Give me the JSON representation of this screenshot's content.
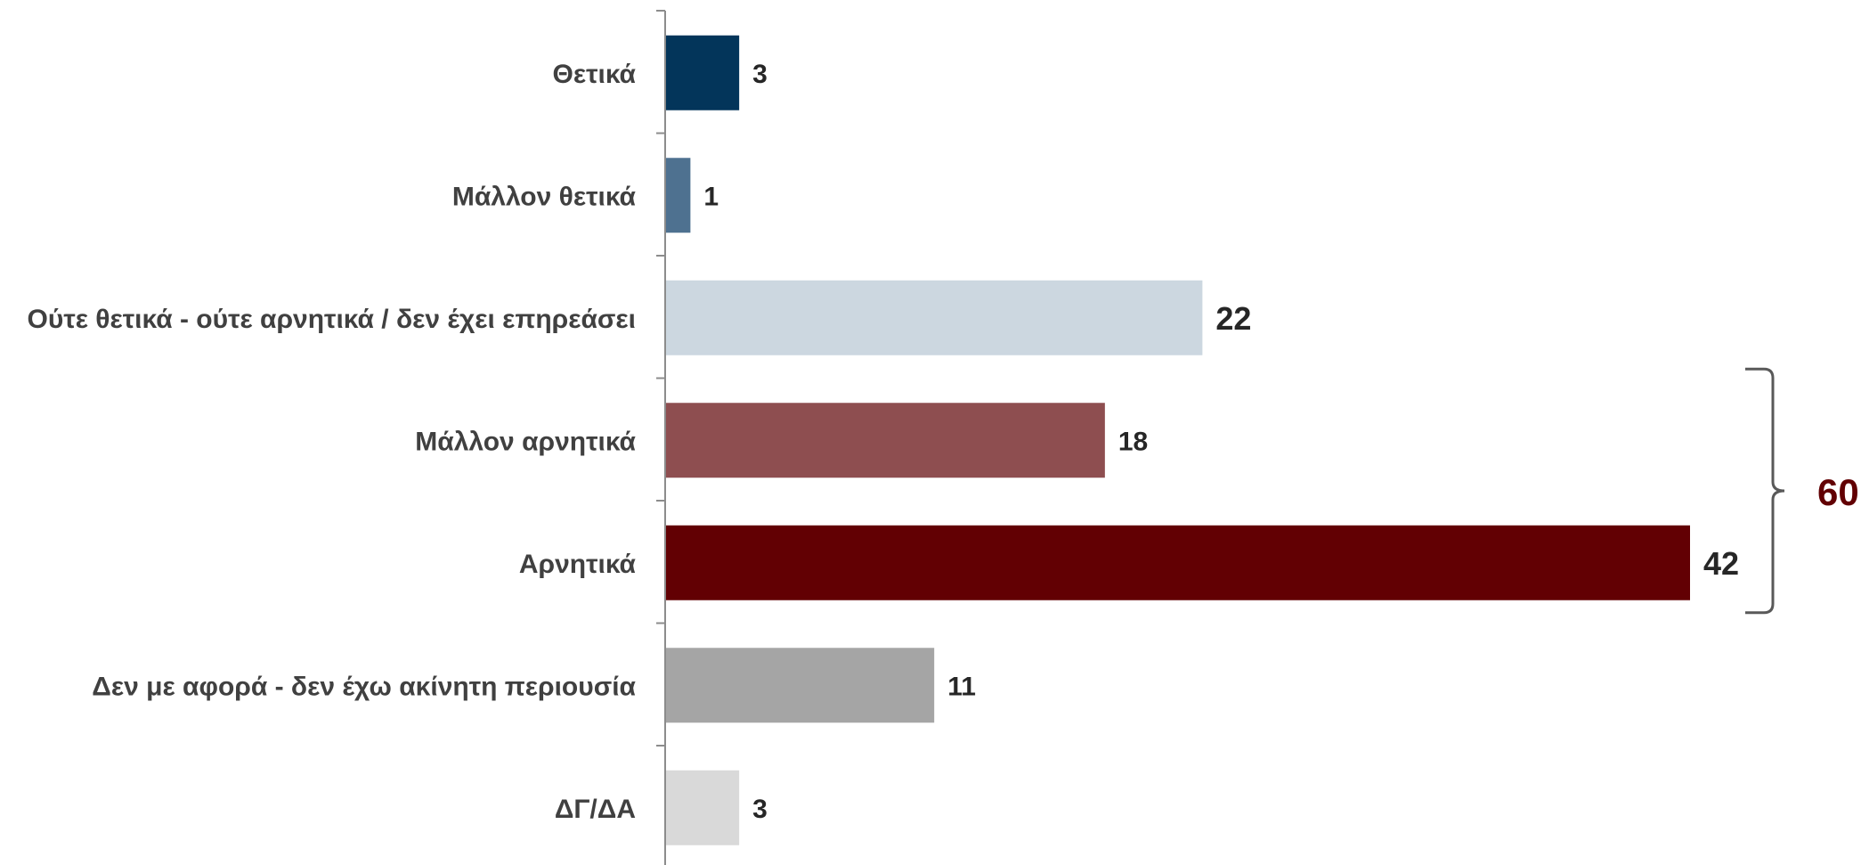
{
  "chart_data": {
    "type": "bar",
    "orientation": "horizontal",
    "title": "",
    "xlabel": "",
    "ylabel": "",
    "categories": [
      "Θετικά",
      "Μάλλον θετικά",
      "Ούτε θετικά - ούτε αρνητικά / δεν έχει επηρεάσει",
      "Μάλλον αρνητικά",
      "Αρνητικά",
      "Δεν με αφορά - δεν έχω ακίνητη περιουσία",
      "ΔΓ/ΔΑ"
    ],
    "values": [
      3,
      1,
      22,
      18,
      42,
      11,
      3
    ],
    "value_labels": [
      "3",
      "1",
      "22",
      "18",
      "42",
      "11",
      "3"
    ],
    "bar_colors": [
      "#03355a",
      "#4e7190",
      "#ccd7e0",
      "#8e4e50",
      "#620003",
      "#a5a5a5",
      "#d9d9d9"
    ],
    "xlim": [
      0,
      42
    ],
    "grid": false,
    "legend": "none",
    "bracket": {
      "categories": [
        "Μάλλον αρνητικά",
        "Αρνητικά"
      ],
      "label": "60",
      "color": "#620003"
    }
  }
}
